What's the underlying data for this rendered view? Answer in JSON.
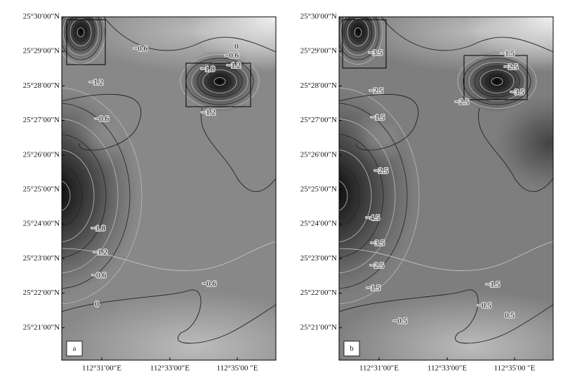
{
  "panels": [
    {
      "label": "a",
      "lat_labels": [
        "25°30′00″N",
        "25°29′00″N",
        "25°28′00″N",
        "25°27′00″N",
        "25°26′00″N",
        "25°25′00″N",
        "25°24′00″N",
        "25°23′00″N",
        "25°22′00″N",
        "25°21′00″N"
      ],
      "lon_labels": [
        "112°31′00″E",
        "112°33′00″E",
        "112°35′00 ″E"
      ],
      "contour_labels": [
        "−0.6",
        "0",
        "−0.6",
        "−1.8",
        "−1.2",
        "−1.2",
        "−0.6",
        "−1.2",
        "−1.8",
        "−1.2",
        "−0.6",
        "0",
        "−0.6"
      ]
    },
    {
      "label": "b",
      "lat_labels": [
        "25°30′00″N",
        "25°29′00″N",
        "25°28′00″N",
        "25°27′00″N",
        "25°26′00″N",
        "25°25′00″N",
        "25°24′00″N",
        "25°23′00″N",
        "25°22′00″N",
        "25°21′00″N"
      ],
      "lon_labels": [
        "112°31′00″E",
        "112°33′00″E",
        "112°35′00 ″E"
      ],
      "contour_labels": [
        "−3.5",
        "−1.5",
        "−2.5",
        "−2.5",
        "−3.5",
        "−2.5",
        "−1.5",
        "−2.5",
        "−4.5",
        "−3.5",
        "−2.5",
        "−1.5",
        "−1.5",
        "−0.5",
        "0.5",
        "−0.5"
      ]
    }
  ]
}
